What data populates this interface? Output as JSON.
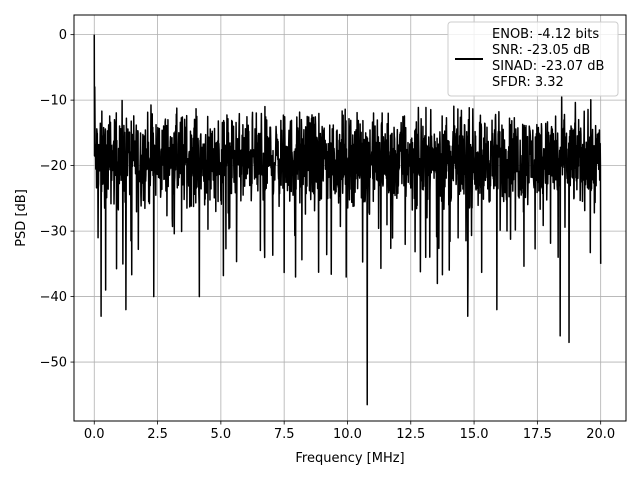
{
  "chart_data": {
    "type": "line",
    "title": "",
    "xlabel": "Frequency [MHz]",
    "ylabel": "PSD [dB]",
    "xlim": [
      -0.8,
      21.0
    ],
    "ylim": [
      -59.0,
      3.0
    ],
    "xticks": [
      0.0,
      2.5,
      5.0,
      7.5,
      10.0,
      12.5,
      15.0,
      17.5,
      20.0
    ],
    "xtick_labels": [
      "0.0",
      "2.5",
      "5.0",
      "7.5",
      "10.0",
      "12.5",
      "15.0",
      "17.5",
      "20.0"
    ],
    "yticks": [
      0,
      -10,
      -20,
      -30,
      -40,
      -50
    ],
    "ytick_labels": [
      "0",
      "−10",
      "−20",
      "−30",
      "−40",
      "−50"
    ],
    "grid": true,
    "legend_position": "upper right",
    "series": [
      {
        "name": "ENOB: -4.12 bits\nSNR: -23.05 dB\nSINAD: -23.07 dB\nSFDR: 3.32",
        "color": "#000000",
        "legend_lines": [
          "ENOB: -4.12 bits",
          "SNR: -23.05 dB",
          "SINAD: -23.07 dB",
          "SFDR: 3.32"
        ],
        "x_range": [
          0.0,
          20.0
        ],
        "baseline_mean": -18.5,
        "baseline_spread": [
          -29.0,
          -9.0
        ],
        "peak_dc": 0.0,
        "notable_points": [
          {
            "x": 0.0,
            "y": 0.0
          },
          {
            "x": 0.02,
            "y": -8.0
          },
          {
            "x": 0.27,
            "y": -43.0
          },
          {
            "x": 0.45,
            "y": -39.0
          },
          {
            "x": 1.25,
            "y": -42.0
          },
          {
            "x": 2.35,
            "y": -40.0
          },
          {
            "x": 4.15,
            "y": -40.0
          },
          {
            "x": 7.95,
            "y": -37.0
          },
          {
            "x": 9.95,
            "y": -37.0
          },
          {
            "x": 10.78,
            "y": -56.5
          },
          {
            "x": 13.55,
            "y": -38.0
          },
          {
            "x": 14.75,
            "y": -43.0
          },
          {
            "x": 15.9,
            "y": -42.0
          },
          {
            "x": 18.4,
            "y": -46.0
          },
          {
            "x": 18.75,
            "y": -47.0
          },
          {
            "x": 20.0,
            "y": -35.0
          }
        ]
      }
    ]
  }
}
